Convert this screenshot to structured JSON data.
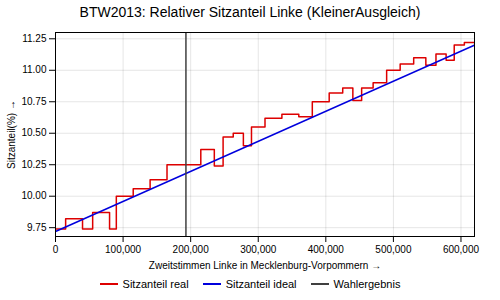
{
  "chart_data": {
    "type": "line",
    "title": "BTW2013: Relativer Sitzanteil Linke (KleinerAusgleich)",
    "xlabel": "Zweitstimmen Linke in Mecklenburg-Vorpommern",
    "ylabel": "Sitzanteil(%)",
    "xlim": [
      0,
      620000
    ],
    "ylim": [
      9.68,
      11.3
    ],
    "xticks": [
      0,
      {
        "value": 100000,
        "label": "100,000"
      },
      {
        "value": 200000,
        "label": "200,000"
      },
      {
        "value": 300000,
        "label": "300,000"
      },
      {
        "value": 400000,
        "label": "400,000"
      },
      {
        "value": 500000,
        "label": "500,000"
      },
      {
        "value": 600000,
        "label": "600,000"
      }
    ],
    "yticks": [
      9.75,
      {
        "value": 10.0,
        "label": "10.00"
      },
      10.25,
      {
        "value": 10.5,
        "label": "10.50"
      },
      10.75,
      {
        "value": 11.0,
        "label": "11.00"
      },
      11.25
    ],
    "grid": true,
    "legend": "lower center",
    "series": [
      {
        "name": "Sitzanteil real",
        "color": "#dd0000",
        "x": [
          0,
          15000,
          15000,
          40000,
          40000,
          55000,
          55000,
          80000,
          80000,
          90000,
          90000,
          115000,
          115000,
          140000,
          140000,
          165000,
          165000,
          193000,
          193000,
          215000,
          215000,
          235000,
          235000,
          248000,
          248000,
          263000,
          263000,
          278000,
          278000,
          290000,
          290000,
          310000,
          310000,
          335000,
          335000,
          360000,
          360000,
          380000,
          380000,
          405000,
          405000,
          425000,
          425000,
          440000,
          440000,
          453000,
          453000,
          470000,
          470000,
          490000,
          490000,
          510000,
          510000,
          530000,
          530000,
          548000,
          548000,
          563000,
          563000,
          578000,
          578000,
          590000,
          590000,
          605000,
          605000,
          620000
        ],
        "values": [
          9.74,
          9.74,
          9.82,
          9.82,
          9.74,
          9.74,
          9.87,
          9.87,
          9.74,
          9.74,
          10.0,
          10.0,
          10.06,
          10.06,
          10.13,
          10.13,
          10.25,
          10.25,
          10.25,
          10.25,
          10.37,
          10.37,
          10.24,
          10.24,
          10.47,
          10.47,
          10.5,
          10.5,
          10.4,
          10.4,
          10.55,
          10.55,
          10.62,
          10.62,
          10.65,
          10.65,
          10.63,
          10.63,
          10.75,
          10.75,
          10.82,
          10.82,
          10.86,
          10.86,
          10.76,
          10.76,
          10.86,
          10.86,
          10.9,
          10.9,
          11.0,
          11.0,
          11.05,
          11.05,
          11.1,
          11.1,
          11.04,
          11.04,
          11.13,
          11.13,
          11.08,
          11.08,
          11.2,
          11.2,
          11.22,
          11.22
        ]
      },
      {
        "name": "Sitzanteil ideal",
        "color": "#0000dd",
        "x": [
          0,
          620000
        ],
        "values": [
          9.72,
          11.2
        ]
      },
      {
        "name": "Wahlergebnis",
        "color": "#404040",
        "type": "rule",
        "x": [
          193000
        ]
      }
    ]
  }
}
